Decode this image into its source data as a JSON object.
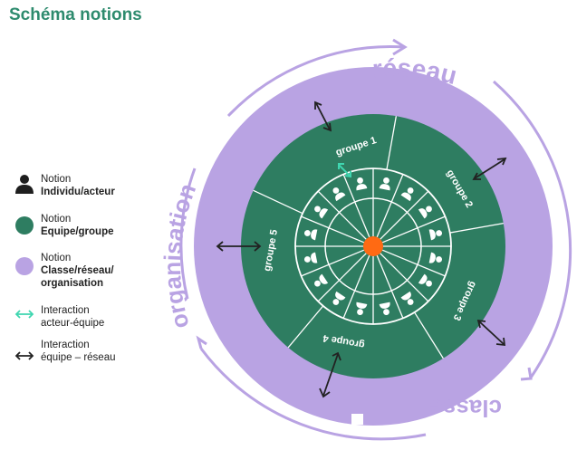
{
  "title": "Schéma notions",
  "legend": [
    {
      "line1": "Notion",
      "line2": "Individu/acteur",
      "icon": "person-icon"
    },
    {
      "line1": "Notion",
      "line2": "Equipe/groupe",
      "icon": "green-circle-icon"
    },
    {
      "line1": "Notion",
      "line2": "Classe/réseau/",
      "line3": "organisation",
      "icon": "purple-circle-icon"
    },
    {
      "line1": "Interaction",
      "line2": "acteur-équipe",
      "icon": "teal-double-arrow-icon"
    },
    {
      "line1": "Interaction",
      "line2": "équipe – réseau",
      "icon": "black-double-arrow-icon"
    }
  ],
  "ring_labels": {
    "top": "réseau",
    "left": "organisation",
    "bottom": "classe"
  },
  "groups": [
    "groupe 1",
    "groupe 2",
    "groupe 3",
    "groupe 4",
    "groupe 5"
  ],
  "colors": {
    "title": "#2e8b6e",
    "purple": "#b9a3e3",
    "green": "#2e7d61",
    "center": "#ff6a13",
    "teal_arrow": "#3fd6b0",
    "dark_arrow": "#222222"
  }
}
